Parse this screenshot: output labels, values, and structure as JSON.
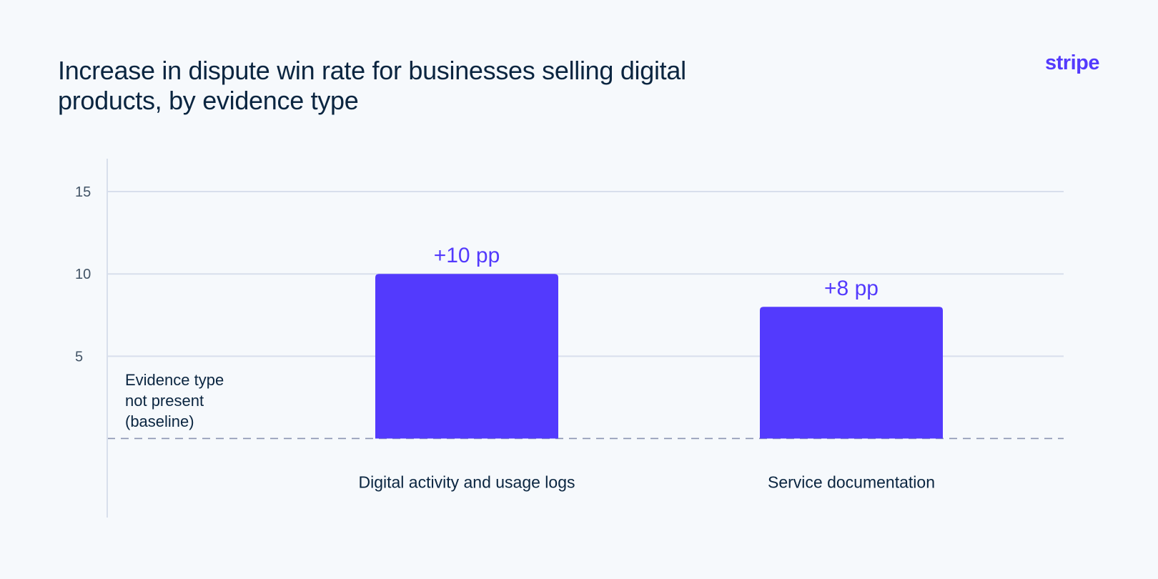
{
  "chart_data": {
    "type": "bar",
    "title": "Increase in dispute win rate for businesses selling digital products, by evidence type",
    "categories": [
      "Digital activity and usage logs",
      "Service documentation"
    ],
    "values": [
      10,
      8
    ],
    "value_labels": [
      "+10 pp",
      "+8 pp"
    ],
    "unit": "pp",
    "ylim": [
      -4.8,
      17
    ],
    "yticks": [
      5,
      10,
      15
    ],
    "ytick_labels": [
      "5",
      "10",
      "15"
    ],
    "baseline": 0,
    "baseline_label_lines": [
      "Evidence type",
      "not present",
      "(baseline)"
    ],
    "grid": true,
    "xlabel": "",
    "ylabel": "",
    "colors": {
      "bar": "#533afd",
      "grid": "#d8dfec",
      "baseline": "#8a93b0",
      "text": "#0a2540",
      "background": "#f6f9fc"
    }
  },
  "brand": {
    "logo_text": "stripe"
  }
}
